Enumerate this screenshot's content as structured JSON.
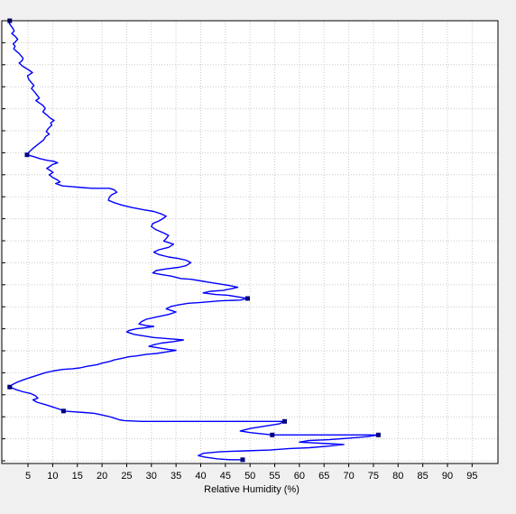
{
  "chart_data": {
    "type": "line",
    "title": "",
    "xlabel": "Relative Humidity (%)",
    "ylabel": "",
    "xlim": [
      0,
      100
    ],
    "x_ticks": [
      5,
      10,
      15,
      20,
      25,
      30,
      35,
      40,
      45,
      50,
      55,
      60,
      65,
      70,
      75,
      80,
      85,
      90,
      95
    ],
    "grid": true,
    "legend": "none",
    "series_color": "#0000ff",
    "marker_color": "#000080",
    "y_direction": "top-to-bottom",
    "series": [
      {
        "values": [
          [
            1.3,
            0.0
          ],
          [
            1.2,
            0.3
          ],
          [
            1.5,
            0.6
          ],
          [
            2.0,
            1.0
          ],
          [
            2.2,
            1.3
          ],
          [
            1.7,
            1.6
          ],
          [
            2.3,
            1.9
          ],
          [
            2.9,
            2.3
          ],
          [
            2.5,
            2.6
          ],
          [
            2.0,
            2.9
          ],
          [
            2.4,
            3.2
          ],
          [
            2.1,
            3.5
          ],
          [
            2.6,
            3.8
          ],
          [
            3.2,
            4.1
          ],
          [
            3.6,
            4.4
          ],
          [
            4.0,
            4.7
          ],
          [
            3.8,
            5.0
          ],
          [
            3.2,
            5.3
          ],
          [
            3.9,
            5.7
          ],
          [
            5.0,
            6.1
          ],
          [
            5.9,
            6.5
          ],
          [
            4.9,
            6.9
          ],
          [
            5.1,
            7.3
          ],
          [
            5.6,
            7.7
          ],
          [
            6.2,
            8.1
          ],
          [
            5.7,
            8.5
          ],
          [
            6.3,
            8.9
          ],
          [
            6.8,
            9.3
          ],
          [
            7.3,
            9.7
          ],
          [
            6.6,
            10.0
          ],
          [
            7.3,
            10.3
          ],
          [
            8.0,
            10.6
          ],
          [
            8.5,
            11.0
          ],
          [
            8.0,
            11.4
          ],
          [
            8.8,
            11.8
          ],
          [
            9.5,
            12.2
          ],
          [
            10.3,
            12.5
          ],
          [
            9.6,
            12.8
          ],
          [
            9.8,
            13.1
          ],
          [
            9.1,
            13.5
          ],
          [
            8.7,
            13.9
          ],
          [
            9.3,
            14.2
          ],
          [
            8.6,
            14.5
          ],
          [
            8.2,
            14.9
          ],
          [
            7.4,
            15.3
          ],
          [
            6.6,
            15.7
          ],
          [
            6.0,
            16.0
          ],
          [
            5.3,
            16.4
          ],
          [
            4.8,
            16.8
          ],
          [
            6.0,
            17.0
          ],
          [
            7.5,
            17.3
          ],
          [
            9.0,
            17.5
          ],
          [
            10.2,
            17.6
          ],
          [
            11.0,
            17.8
          ],
          [
            10.0,
            18.0
          ],
          [
            9.3,
            18.3
          ],
          [
            8.8,
            18.5
          ],
          [
            9.6,
            18.8
          ],
          [
            10.1,
            19.0
          ],
          [
            9.3,
            19.3
          ],
          [
            9.9,
            19.6
          ],
          [
            10.8,
            19.9
          ],
          [
            11.5,
            20.2
          ],
          [
            10.6,
            20.4
          ],
          [
            12.0,
            20.7
          ],
          [
            14.0,
            20.8
          ],
          [
            16.0,
            20.9
          ],
          [
            18.0,
            21.0
          ],
          [
            20.0,
            21.0
          ],
          [
            21.5,
            21.0
          ],
          [
            22.5,
            21.2
          ],
          [
            23.0,
            21.5
          ],
          [
            22.0,
            21.8
          ],
          [
            21.5,
            22.1
          ],
          [
            21.3,
            22.5
          ],
          [
            22.5,
            22.8
          ],
          [
            24.0,
            23.1
          ],
          [
            26.0,
            23.4
          ],
          [
            28.5,
            23.7
          ],
          [
            30.5,
            23.9
          ],
          [
            32.0,
            24.2
          ],
          [
            33.0,
            24.5
          ],
          [
            32.3,
            24.8
          ],
          [
            31.5,
            25.1
          ],
          [
            30.3,
            25.4
          ],
          [
            30.0,
            25.8
          ],
          [
            31.0,
            26.2
          ],
          [
            32.5,
            26.6
          ],
          [
            33.5,
            26.9
          ],
          [
            33.0,
            27.3
          ],
          [
            32.5,
            27.6
          ],
          [
            34.5,
            28.0
          ],
          [
            33.5,
            28.4
          ],
          [
            31.5,
            28.7
          ],
          [
            30.5,
            29.0
          ],
          [
            31.5,
            29.3
          ],
          [
            33.5,
            29.6
          ],
          [
            35.5,
            29.8
          ],
          [
            37.0,
            30.0
          ],
          [
            38.0,
            30.3
          ],
          [
            37.0,
            30.7
          ],
          [
            35.5,
            30.9
          ],
          [
            33.0,
            31.1
          ],
          [
            31.0,
            31.3
          ],
          [
            30.3,
            31.6
          ],
          [
            32.0,
            31.8
          ],
          [
            34.0,
            32.0
          ],
          [
            36.0,
            32.3
          ],
          [
            38.0,
            32.4
          ],
          [
            40.0,
            32.6
          ],
          [
            42.0,
            32.8
          ],
          [
            44.0,
            33.0
          ],
          [
            46.0,
            33.2
          ],
          [
            47.5,
            33.4
          ],
          [
            46.0,
            33.6
          ],
          [
            44.5,
            33.8
          ],
          [
            42.0,
            33.9
          ],
          [
            40.5,
            34.1
          ],
          [
            43.0,
            34.3
          ],
          [
            45.5,
            34.4
          ],
          [
            47.5,
            34.6
          ],
          [
            49.5,
            34.8
          ],
          [
            48.0,
            35.0
          ],
          [
            44.0,
            35.1
          ],
          [
            40.0,
            35.3
          ],
          [
            37.5,
            35.4
          ],
          [
            35.5,
            35.6
          ],
          [
            34.0,
            35.8
          ],
          [
            33.0,
            36.1
          ],
          [
            34.0,
            36.3
          ],
          [
            35.0,
            36.5
          ],
          [
            33.5,
            36.8
          ],
          [
            32.0,
            37.0
          ],
          [
            30.5,
            37.2
          ],
          [
            29.0,
            37.4
          ],
          [
            28.0,
            37.7
          ],
          [
            27.5,
            38.0
          ],
          [
            29.0,
            38.2
          ],
          [
            30.5,
            38.3
          ],
          [
            28.5,
            38.5
          ],
          [
            27.0,
            38.6
          ],
          [
            25.5,
            38.8
          ],
          [
            25.0,
            39.0
          ],
          [
            26.5,
            39.3
          ],
          [
            28.5,
            39.5
          ],
          [
            30.5,
            39.7
          ],
          [
            32.5,
            39.8
          ],
          [
            34.5,
            39.9
          ],
          [
            36.5,
            40.0
          ],
          [
            34.5,
            40.2
          ],
          [
            32.0,
            40.4
          ],
          [
            30.5,
            40.6
          ],
          [
            29.5,
            40.8
          ],
          [
            31.5,
            41.0
          ],
          [
            33.5,
            41.2
          ],
          [
            35.0,
            41.3
          ],
          [
            33.0,
            41.5
          ],
          [
            31.0,
            41.7
          ],
          [
            29.0,
            41.8
          ],
          [
            27.0,
            42.0
          ],
          [
            25.5,
            42.1
          ],
          [
            24.0,
            42.3
          ],
          [
            22.5,
            42.5
          ],
          [
            21.5,
            42.7
          ],
          [
            20.0,
            42.9
          ],
          [
            19.0,
            43.1
          ],
          [
            17.0,
            43.3
          ],
          [
            15.5,
            43.5
          ],
          [
            14.0,
            43.6
          ],
          [
            12.0,
            43.7
          ],
          [
            10.0,
            43.9
          ],
          [
            8.5,
            44.1
          ],
          [
            7.0,
            44.4
          ],
          [
            5.5,
            44.7
          ],
          [
            4.0,
            45.0
          ],
          [
            2.8,
            45.3
          ],
          [
            1.8,
            45.6
          ],
          [
            1.3,
            45.9
          ],
          [
            2.5,
            46.2
          ],
          [
            4.0,
            46.5
          ],
          [
            5.5,
            46.7
          ],
          [
            6.5,
            47.0
          ],
          [
            7.0,
            47.3
          ],
          [
            6.0,
            47.5
          ],
          [
            6.8,
            47.8
          ],
          [
            8.5,
            48.1
          ],
          [
            10.0,
            48.4
          ],
          [
            11.5,
            48.7
          ],
          [
            12.2,
            48.9
          ],
          [
            14.0,
            49.0
          ],
          [
            16.5,
            49.1
          ],
          [
            18.5,
            49.2
          ],
          [
            20.0,
            49.4
          ],
          [
            21.5,
            49.6
          ],
          [
            22.5,
            49.8
          ],
          [
            23.5,
            50.0
          ],
          [
            24.5,
            50.1
          ],
          [
            28.0,
            50.2
          ],
          [
            34.0,
            50.2
          ],
          [
            40.0,
            50.2
          ],
          [
            46.0,
            50.2
          ],
          [
            52.0,
            50.2
          ],
          [
            57.0,
            50.2
          ],
          [
            56.0,
            50.5
          ],
          [
            53.0,
            50.8
          ],
          [
            50.0,
            51.1
          ],
          [
            48.0,
            51.4
          ],
          [
            50.0,
            51.6
          ],
          [
            53.0,
            51.8
          ],
          [
            54.5,
            51.9
          ],
          [
            60.0,
            51.9
          ],
          [
            66.0,
            51.9
          ],
          [
            71.0,
            51.9
          ],
          [
            76.0,
            51.9
          ],
          [
            74.0,
            52.1
          ],
          [
            70.0,
            52.3
          ],
          [
            66.0,
            52.5
          ],
          [
            62.0,
            52.6
          ],
          [
            60.0,
            52.8
          ],
          [
            63.0,
            52.9
          ],
          [
            66.0,
            53.0
          ],
          [
            69.0,
            53.1
          ],
          [
            66.0,
            53.3
          ],
          [
            62.0,
            53.5
          ],
          [
            58.0,
            53.6
          ],
          [
            54.0,
            53.8
          ],
          [
            49.0,
            53.9
          ],
          [
            44.0,
            54.0
          ],
          [
            40.5,
            54.2
          ],
          [
            39.5,
            54.5
          ],
          [
            41.0,
            54.7
          ],
          [
            43.5,
            54.9
          ],
          [
            46.0,
            55.0
          ],
          [
            48.5,
            55.0
          ]
        ],
        "markers": [
          [
            1.3,
            0.0
          ],
          [
            4.8,
            16.8
          ],
          [
            49.5,
            34.8
          ],
          [
            1.3,
            45.9
          ],
          [
            12.2,
            48.9
          ],
          [
            57.0,
            50.2
          ],
          [
            54.5,
            51.9
          ],
          [
            76.0,
            51.9
          ],
          [
            48.5,
            55.0
          ]
        ]
      }
    ]
  }
}
